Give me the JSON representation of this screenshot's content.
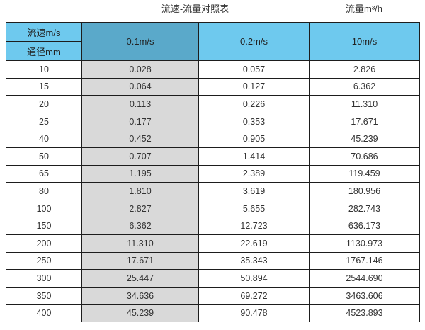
{
  "title": "流速-流量对照表",
  "flow_unit_label": "流量m³/h",
  "colors": {
    "header_light_blue": "#6ec9ee",
    "header_dark_blue": "#5aa9ca",
    "column_gray": "#d9d9d9",
    "border": "#1d1d1d",
    "background": "#ffffff",
    "text": "#333333"
  },
  "table": {
    "corner_top": "流速m/s",
    "corner_bottom": "通径mm",
    "velocity_columns": [
      "0.1m/s",
      "0.2m/s",
      "10m/s"
    ],
    "rows": [
      [
        "10",
        "0.028",
        "0.057",
        "2.826"
      ],
      [
        "15",
        "0.064",
        "0.127",
        "6.362"
      ],
      [
        "20",
        "0.113",
        "0.226",
        "11.310"
      ],
      [
        "25",
        "0.177",
        "0.353",
        "17.671"
      ],
      [
        "40",
        "0.452",
        "0.905",
        "45.239"
      ],
      [
        "50",
        "0.707",
        "1.414",
        "70.686"
      ],
      [
        "65",
        "1.195",
        "2.389",
        "119.459"
      ],
      [
        "80",
        "1.810",
        "3.619",
        "180.956"
      ],
      [
        "100",
        "2.827",
        "5.655",
        "282.743"
      ],
      [
        "150",
        "6.362",
        "12.723",
        "636.173"
      ],
      [
        "200",
        "11.310",
        "22.619",
        "1130.973"
      ],
      [
        "250",
        "17.671",
        "35.343",
        "1767.146"
      ],
      [
        "300",
        "25.447",
        "50.894",
        "2544.690"
      ],
      [
        "350",
        "34.636",
        "69.272",
        "3463.606"
      ],
      [
        "400",
        "45.239",
        "90.478",
        "4523.893"
      ]
    ]
  },
  "chart_data": {
    "type": "table",
    "title": "流速-流量对照表",
    "unit": "流量m³/h",
    "row_header": "通径mm",
    "column_header": "流速m/s",
    "columns": [
      "0.1m/s",
      "0.2m/s",
      "10m/s"
    ],
    "diameters_mm": [
      10,
      15,
      20,
      25,
      40,
      50,
      65,
      80,
      100,
      150,
      200,
      250,
      300,
      350,
      400
    ],
    "series": [
      {
        "name": "0.1m/s",
        "values": [
          0.028,
          0.064,
          0.113,
          0.177,
          0.452,
          0.707,
          1.195,
          1.81,
          2.827,
          6.362,
          11.31,
          17.671,
          25.447,
          34.636,
          45.239
        ]
      },
      {
        "name": "0.2m/s",
        "values": [
          0.057,
          0.127,
          0.226,
          0.353,
          0.905,
          1.414,
          2.389,
          3.619,
          5.655,
          12.723,
          22.619,
          35.343,
          50.894,
          69.272,
          90.478
        ]
      },
      {
        "name": "10m/s",
        "values": [
          2.826,
          6.362,
          11.31,
          17.671,
          45.239,
          70.686,
          119.459,
          180.956,
          282.743,
          636.173,
          1130.973,
          1767.146,
          2544.69,
          3463.606,
          4523.893
        ]
      }
    ]
  }
}
